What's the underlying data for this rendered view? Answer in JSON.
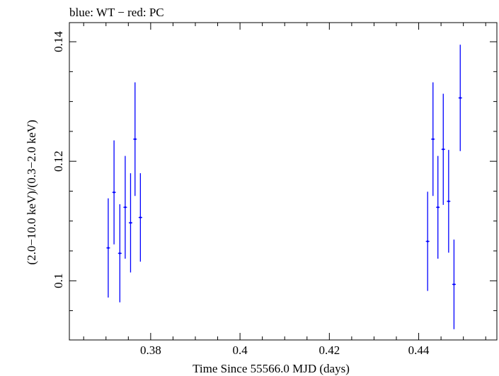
{
  "chart_data": {
    "type": "scatter",
    "title": "blue: WT − red: PC",
    "xlabel": "Time Since 55566.0 MJD (days)",
    "ylabel": "(2.0−10.0 keV)/(0.3−2.0 keV)",
    "xlim": [
      0.3618,
      0.4575
    ],
    "ylim": [
      0.0901,
      0.1432
    ],
    "x_ticks": [
      0.38,
      0.4,
      0.42,
      0.44
    ],
    "x_tick_labels": [
      "0.38",
      "0.4",
      "0.42",
      "0.44"
    ],
    "y_ticks": [
      0.1,
      0.12,
      0.14
    ],
    "y_tick_labels": [
      "0.1",
      "0.12",
      "0.14"
    ],
    "grid": false,
    "series": [
      {
        "name": "WT",
        "color": "#0000ff",
        "points": [
          {
            "x": 0.3705,
            "xerr": 0.0004,
            "y": 0.1055,
            "yerr": 0.0083
          },
          {
            "x": 0.3718,
            "xerr": 0.0004,
            "y": 0.1148,
            "yerr": 0.0087
          },
          {
            "x": 0.3731,
            "xerr": 0.0004,
            "y": 0.1046,
            "yerr": 0.0082
          },
          {
            "x": 0.3743,
            "xerr": 0.0004,
            "y": 0.1123,
            "yerr": 0.0086
          },
          {
            "x": 0.3755,
            "xerr": 0.0004,
            "y": 0.1097,
            "yerr": 0.0083
          },
          {
            "x": 0.3765,
            "xerr": 0.0004,
            "y": 0.1237,
            "yerr": 0.0095
          },
          {
            "x": 0.3777,
            "xerr": 0.0004,
            "y": 0.1106,
            "yerr": 0.0074
          },
          {
            "x": 0.442,
            "xerr": 0.0004,
            "y": 0.1066,
            "yerr": 0.0083
          },
          {
            "x": 0.4432,
            "xerr": 0.0004,
            "y": 0.1237,
            "yerr": 0.0095
          },
          {
            "x": 0.4443,
            "xerr": 0.0004,
            "y": 0.1123,
            "yerr": 0.0086
          },
          {
            "x": 0.4455,
            "xerr": 0.0004,
            "y": 0.122,
            "yerr": 0.0093
          },
          {
            "x": 0.4467,
            "xerr": 0.0004,
            "y": 0.1133,
            "yerr": 0.0086
          },
          {
            "x": 0.4479,
            "xerr": 0.0004,
            "y": 0.0994,
            "yerr": 0.0075
          },
          {
            "x": 0.4493,
            "xerr": 0.0004,
            "y": 0.1306,
            "yerr": 0.0089
          }
        ]
      }
    ]
  }
}
